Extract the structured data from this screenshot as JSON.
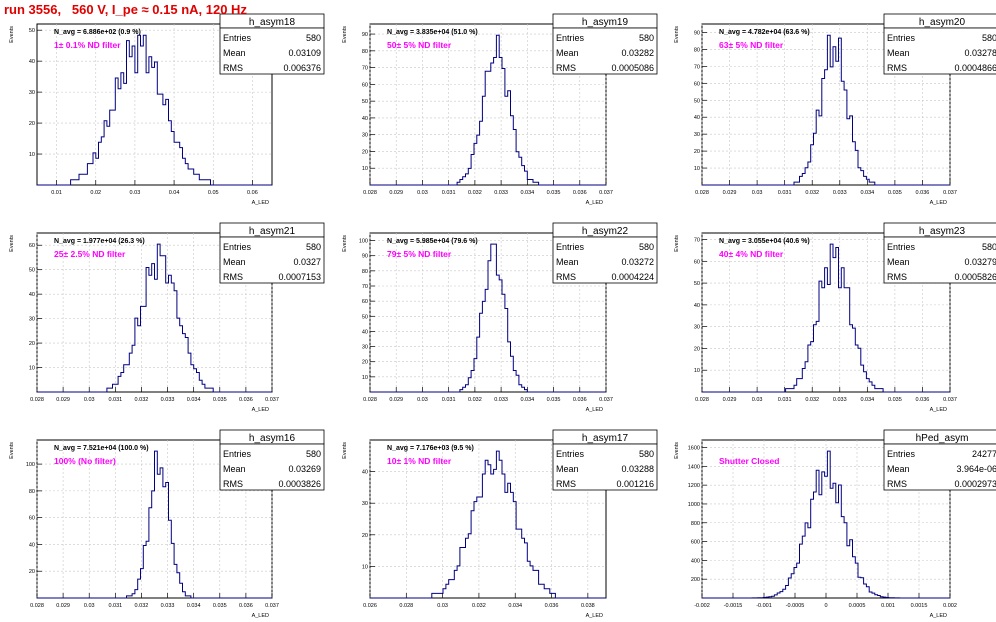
{
  "page": {
    "run_title": "run 3556,   560 V, I_pe ≈ 0.15 nA, 120 Hz"
  },
  "style": {
    "title_color": "#e00000",
    "annotation_color": "#ff00ff",
    "histogram_color": "#000080",
    "grid_color": "#c8c8c8"
  },
  "chart_data": [
    {
      "type": "histogram",
      "name": "h_asym18",
      "nav_label": "N_avg = 6.886e+02 (0.9 %)",
      "annotation": "1± 0.1% ND filter",
      "stats": {
        "entries_label": "Entries",
        "entries": "580",
        "mean_label": "Mean",
        "mean": "0.03109",
        "rms_label": "RMS",
        "rms": "0.006376"
      },
      "ylabel": "Events",
      "xlabel": "A_LED",
      "xlim": [
        0.005,
        0.065
      ],
      "ylim": [
        0,
        52
      ],
      "xticks": [
        "0.01",
        "0.02",
        "0.03",
        "0.04",
        "0.05",
        "0.06"
      ],
      "yticks": [
        10,
        20,
        30,
        40,
        50
      ],
      "grid": true,
      "mean_value": 0.03109,
      "rms_value": 0.006376,
      "entries_value": 580
    },
    {
      "type": "histogram",
      "name": "h_asym19",
      "nav_label": "N_avg = 3.835e+04 (51.0 %)",
      "annotation": "50± 5% ND filter",
      "stats": {
        "entries_label": "Entries",
        "entries": "580",
        "mean_label": "Mean",
        "mean": "0.03282",
        "rms_label": "RMS",
        "rms": "0.0005086"
      },
      "ylabel": "Events",
      "xlabel": "A_LED",
      "xlim": [
        0.028,
        0.037
      ],
      "ylim": [
        0,
        96
      ],
      "xticks": [
        "0.028",
        "0.029",
        "0.03",
        "0.031",
        "0.032",
        "0.033",
        "0.034",
        "0.035",
        "0.036",
        "0.037"
      ],
      "yticks": [
        10,
        20,
        30,
        40,
        50,
        60,
        70,
        80,
        90
      ],
      "grid": true,
      "mean_value": 0.03282,
      "rms_value": 0.0005086,
      "entries_value": 580
    },
    {
      "type": "histogram",
      "name": "h_asym20",
      "nav_label": "N_avg = 4.782e+04 (63.6 %)",
      "annotation": "63± 5% ND filter",
      "stats": {
        "entries_label": "Entries",
        "entries": "580",
        "mean_label": "Mean",
        "mean": "0.03278",
        "rms_label": "RMS",
        "rms": "0.0004866"
      },
      "ylabel": "Events",
      "xlabel": "A_LED",
      "xlim": [
        0.028,
        0.037
      ],
      "ylim": [
        0,
        95
      ],
      "xticks": [
        "0.028",
        "0.029",
        "0.03",
        "0.031",
        "0.032",
        "0.033",
        "0.034",
        "0.035",
        "0.036",
        "0.037"
      ],
      "yticks": [
        10,
        20,
        30,
        40,
        50,
        60,
        70,
        80,
        90
      ],
      "grid": true,
      "mean_value": 0.03278,
      "rms_value": 0.0004866,
      "entries_value": 580
    },
    {
      "type": "histogram",
      "name": "h_asym21",
      "nav_label": "N_avg = 1.977e+04 (26.3 %)",
      "annotation": "25± 2.5% ND filter",
      "stats": {
        "entries_label": "Entries",
        "entries": "580",
        "mean_label": "Mean",
        "mean": "0.0327",
        "rms_label": "RMS",
        "rms": "0.0007153"
      },
      "ylabel": "Events",
      "xlabel": "A_LED",
      "xlim": [
        0.028,
        0.037
      ],
      "ylim": [
        0,
        65
      ],
      "xticks": [
        "0.028",
        "0.029",
        "0.03",
        "0.031",
        "0.032",
        "0.033",
        "0.034",
        "0.035",
        "0.036",
        "0.037"
      ],
      "yticks": [
        10,
        20,
        30,
        40,
        50,
        60
      ],
      "grid": true,
      "mean_value": 0.0327,
      "rms_value": 0.0007153,
      "entries_value": 580
    },
    {
      "type": "histogram",
      "name": "h_asym22",
      "nav_label": "N_avg = 5.985e+04 (79.6 %)",
      "annotation": "79± 5% ND filter",
      "stats": {
        "entries_label": "Entries",
        "entries": "580",
        "mean_label": "Mean",
        "mean": "0.03272",
        "rms_label": "RMS",
        "rms": "0.0004224"
      },
      "ylabel": "Events",
      "xlabel": "A_LED",
      "xlim": [
        0.028,
        0.037
      ],
      "ylim": [
        0,
        105
      ],
      "xticks": [
        "0.028",
        "0.029",
        "0.03",
        "0.031",
        "0.032",
        "0.033",
        "0.034",
        "0.035",
        "0.036",
        "0.037"
      ],
      "yticks": [
        10,
        20,
        30,
        40,
        50,
        60,
        70,
        80,
        90,
        100
      ],
      "grid": true,
      "mean_value": 0.03272,
      "rms_value": 0.0004224,
      "entries_value": 580
    },
    {
      "type": "histogram",
      "name": "h_asym23",
      "nav_label": "N_avg = 3.055e+04 (40.6 %)",
      "annotation": "40± 4% ND filter",
      "stats": {
        "entries_label": "Entries",
        "entries": "580",
        "mean_label": "Mean",
        "mean": "0.03279",
        "rms_label": "RMS",
        "rms": "0.0005826"
      },
      "ylabel": "Events",
      "xlabel": "A_LED",
      "xlim": [
        0.028,
        0.037
      ],
      "ylim": [
        0,
        73
      ],
      "xticks": [
        "0.028",
        "0.029",
        "0.03",
        "0.031",
        "0.032",
        "0.033",
        "0.034",
        "0.035",
        "0.036",
        "0.037"
      ],
      "yticks": [
        10,
        20,
        30,
        40,
        50,
        60,
        70
      ],
      "grid": true,
      "mean_value": 0.03279,
      "rms_value": 0.0005826,
      "entries_value": 580
    },
    {
      "type": "histogram",
      "name": "h_asym16",
      "nav_label": "N_avg = 7.521e+04 (100.0 %)",
      "annotation": "100% (No filter)",
      "stats": {
        "entries_label": "Entries",
        "entries": "580",
        "mean_label": "Mean",
        "mean": "0.03269",
        "rms_label": "RMS",
        "rms": "0.0003826"
      },
      "ylabel": "Events",
      "xlabel": "A_LED",
      "xlim": [
        0.028,
        0.037
      ],
      "ylim": [
        0,
        118
      ],
      "xticks": [
        "0.028",
        "0.029",
        "0.03",
        "0.031",
        "0.032",
        "0.033",
        "0.034",
        "0.035",
        "0.036",
        "0.037"
      ],
      "yticks": [
        20,
        40,
        60,
        80,
        100
      ],
      "grid": true,
      "mean_value": 0.03269,
      "rms_value": 0.0003826,
      "entries_value": 580
    },
    {
      "type": "histogram",
      "name": "h_asym17",
      "nav_label": "N_avg = 7.176e+03 (9.5 %)",
      "annotation": "10± 1% ND filter",
      "stats": {
        "entries_label": "Entries",
        "entries": "580",
        "mean_label": "Mean",
        "mean": "0.03288",
        "rms_label": "RMS",
        "rms": "0.001216"
      },
      "ylabel": "Events",
      "xlabel": "A_LED",
      "xlim": [
        0.026,
        0.039
      ],
      "ylim": [
        0,
        50
      ],
      "xticks": [
        "0.026",
        "0.028",
        "0.03",
        "0.032",
        "0.034",
        "0.036",
        "0.038"
      ],
      "yticks": [
        10,
        20,
        30,
        40
      ],
      "grid": true,
      "mean_value": 0.03288,
      "rms_value": 0.001216,
      "entries_value": 580
    },
    {
      "type": "histogram",
      "name": "hPed_asym",
      "nav_label": "",
      "annotation": "Shutter Closed",
      "stats": {
        "entries_label": "Entries",
        "entries": "24277",
        "mean_label": "Mean",
        "mean": "3.964e-06",
        "rms_label": "RMS",
        "rms": "0.0002973"
      },
      "ylabel": "Events",
      "xlabel": "A_LED",
      "xlim": [
        -0.002,
        0.002
      ],
      "ylim": [
        0,
        1680
      ],
      "xticks": [
        "-0.002",
        "-0.0015",
        "-0.001",
        "-0.0005",
        "0",
        "0.0005",
        "0.001",
        "0.0015",
        "0.002"
      ],
      "yticks": [
        200,
        400,
        600,
        800,
        1000,
        1200,
        1400,
        1600
      ],
      "grid": true,
      "mean_value": 3.964e-06,
      "rms_value": 0.0002973,
      "entries_value": 24277
    }
  ]
}
